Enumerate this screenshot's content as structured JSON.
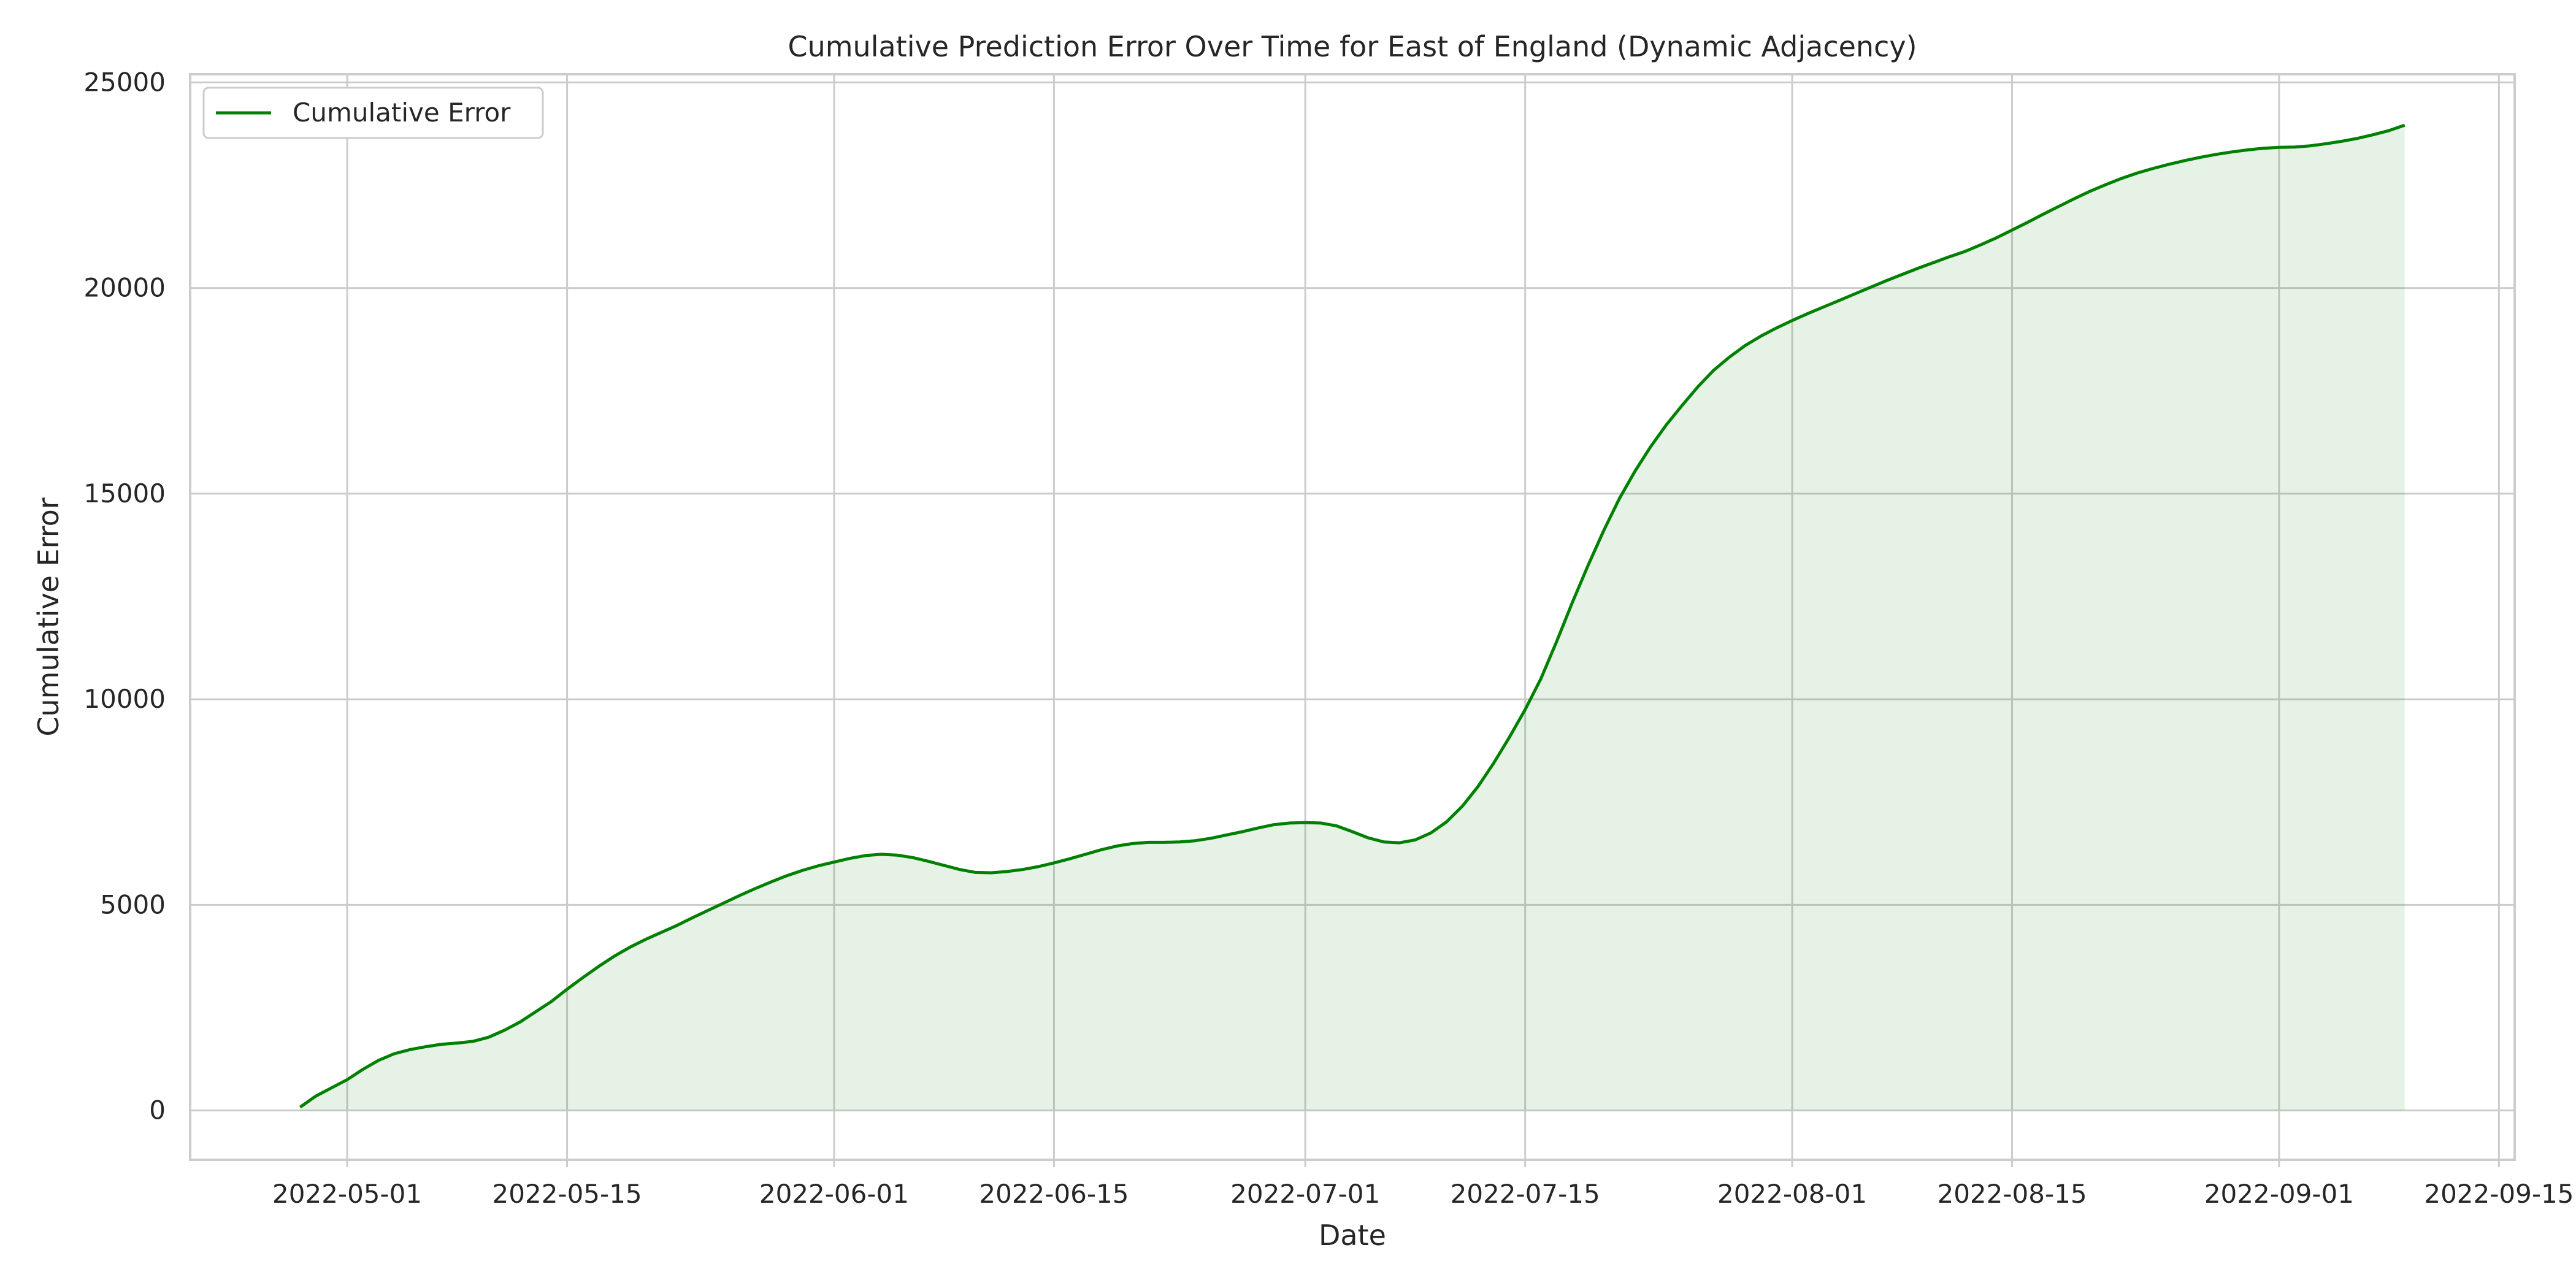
{
  "chart_data": {
    "type": "area",
    "title": "Cumulative Prediction Error Over Time for East of England (Dynamic Adjacency)",
    "xlabel": "Date",
    "ylabel": "Cumulative Error",
    "xlim": [
      "2022-04-21",
      "2022-09-16"
    ],
    "ylim": [
      -1200,
      25200
    ],
    "x_ticks": [
      "2022-05-01",
      "2022-05-15",
      "2022-06-01",
      "2022-06-15",
      "2022-07-01",
      "2022-07-15",
      "2022-08-01",
      "2022-08-15",
      "2022-09-01",
      "2022-09-15"
    ],
    "y_ticks": [
      0,
      5000,
      10000,
      15000,
      20000,
      25000
    ],
    "grid": true,
    "legend": {
      "position": "top-left"
    },
    "series": [
      {
        "name": "Cumulative Error",
        "color": "#008000",
        "fill_color": "#008000",
        "fill_opacity": 0.1,
        "points": [
          [
            "2022-04-28",
            80
          ],
          [
            "2022-04-29",
            350
          ],
          [
            "2022-04-30",
            550
          ],
          [
            "2022-05-01",
            750
          ],
          [
            "2022-05-02",
            1000
          ],
          [
            "2022-05-03",
            1220
          ],
          [
            "2022-05-04",
            1380
          ],
          [
            "2022-05-05",
            1480
          ],
          [
            "2022-05-06",
            1550
          ],
          [
            "2022-05-07",
            1610
          ],
          [
            "2022-05-08",
            1640
          ],
          [
            "2022-05-09",
            1680
          ],
          [
            "2022-05-10",
            1780
          ],
          [
            "2022-05-11",
            1950
          ],
          [
            "2022-05-12",
            2150
          ],
          [
            "2022-05-13",
            2400
          ],
          [
            "2022-05-14",
            2650
          ],
          [
            "2022-05-15",
            2950
          ],
          [
            "2022-05-16",
            3230
          ],
          [
            "2022-05-17",
            3500
          ],
          [
            "2022-05-18",
            3750
          ],
          [
            "2022-05-19",
            3970
          ],
          [
            "2022-05-20",
            4160
          ],
          [
            "2022-05-21",
            4330
          ],
          [
            "2022-05-22",
            4500
          ],
          [
            "2022-05-23",
            4690
          ],
          [
            "2022-05-24",
            4870
          ],
          [
            "2022-05-25",
            5050
          ],
          [
            "2022-05-26",
            5230
          ],
          [
            "2022-05-27",
            5400
          ],
          [
            "2022-05-28",
            5560
          ],
          [
            "2022-05-29",
            5710
          ],
          [
            "2022-05-30",
            5840
          ],
          [
            "2022-05-31",
            5950
          ],
          [
            "2022-06-01",
            6040
          ],
          [
            "2022-06-02",
            6130
          ],
          [
            "2022-06-03",
            6200
          ],
          [
            "2022-06-04",
            6230
          ],
          [
            "2022-06-05",
            6210
          ],
          [
            "2022-06-06",
            6150
          ],
          [
            "2022-06-07",
            6060
          ],
          [
            "2022-06-08",
            5960
          ],
          [
            "2022-06-09",
            5860
          ],
          [
            "2022-06-10",
            5790
          ],
          [
            "2022-06-11",
            5780
          ],
          [
            "2022-06-12",
            5810
          ],
          [
            "2022-06-13",
            5860
          ],
          [
            "2022-06-14",
            5930
          ],
          [
            "2022-06-15",
            6020
          ],
          [
            "2022-06-16",
            6120
          ],
          [
            "2022-06-17",
            6230
          ],
          [
            "2022-06-18",
            6340
          ],
          [
            "2022-06-19",
            6430
          ],
          [
            "2022-06-20",
            6490
          ],
          [
            "2022-06-21",
            6520
          ],
          [
            "2022-06-22",
            6520
          ],
          [
            "2022-06-23",
            6530
          ],
          [
            "2022-06-24",
            6560
          ],
          [
            "2022-06-25",
            6620
          ],
          [
            "2022-06-26",
            6700
          ],
          [
            "2022-06-27",
            6780
          ],
          [
            "2022-06-28",
            6870
          ],
          [
            "2022-06-29",
            6950
          ],
          [
            "2022-06-30",
            6990
          ],
          [
            "2022-07-01",
            7000
          ],
          [
            "2022-07-02",
            6990
          ],
          [
            "2022-07-03",
            6920
          ],
          [
            "2022-07-04",
            6780
          ],
          [
            "2022-07-05",
            6630
          ],
          [
            "2022-07-06",
            6530
          ],
          [
            "2022-07-07",
            6510
          ],
          [
            "2022-07-08",
            6580
          ],
          [
            "2022-07-09",
            6750
          ],
          [
            "2022-07-10",
            7020
          ],
          [
            "2022-07-11",
            7400
          ],
          [
            "2022-07-12",
            7880
          ],
          [
            "2022-07-13",
            8450
          ],
          [
            "2022-07-14",
            9080
          ],
          [
            "2022-07-15",
            9750
          ],
          [
            "2022-07-16",
            10500
          ],
          [
            "2022-07-17",
            11400
          ],
          [
            "2022-07-18",
            12350
          ],
          [
            "2022-07-19",
            13250
          ],
          [
            "2022-07-20",
            14100
          ],
          [
            "2022-07-21",
            14880
          ],
          [
            "2022-07-22",
            15550
          ],
          [
            "2022-07-23",
            16150
          ],
          [
            "2022-07-24",
            16680
          ],
          [
            "2022-07-25",
            17150
          ],
          [
            "2022-07-26",
            17600
          ],
          [
            "2022-07-27",
            18000
          ],
          [
            "2022-07-28",
            18320
          ],
          [
            "2022-07-29",
            18600
          ],
          [
            "2022-07-30",
            18830
          ],
          [
            "2022-07-31",
            19030
          ],
          [
            "2022-08-01",
            19210
          ],
          [
            "2022-08-02",
            19380
          ],
          [
            "2022-08-03",
            19540
          ],
          [
            "2022-08-04",
            19700
          ],
          [
            "2022-08-05",
            19860
          ],
          [
            "2022-08-06",
            20020
          ],
          [
            "2022-08-07",
            20180
          ],
          [
            "2022-08-08",
            20330
          ],
          [
            "2022-08-09",
            20480
          ],
          [
            "2022-08-10",
            20620
          ],
          [
            "2022-08-11",
            20760
          ],
          [
            "2022-08-12",
            20890
          ],
          [
            "2022-08-13",
            21050
          ],
          [
            "2022-08-14",
            21220
          ],
          [
            "2022-08-15",
            21410
          ],
          [
            "2022-08-16",
            21600
          ],
          [
            "2022-08-17",
            21800
          ],
          [
            "2022-08-18",
            21990
          ],
          [
            "2022-08-19",
            22180
          ],
          [
            "2022-08-20",
            22360
          ],
          [
            "2022-08-21",
            22520
          ],
          [
            "2022-08-22",
            22670
          ],
          [
            "2022-08-23",
            22800
          ],
          [
            "2022-08-24",
            22910
          ],
          [
            "2022-08-25",
            23010
          ],
          [
            "2022-08-26",
            23100
          ],
          [
            "2022-08-27",
            23180
          ],
          [
            "2022-08-28",
            23250
          ],
          [
            "2022-08-29",
            23310
          ],
          [
            "2022-08-30",
            23360
          ],
          [
            "2022-08-31",
            23400
          ],
          [
            "2022-09-01",
            23420
          ],
          [
            "2022-09-02",
            23430
          ],
          [
            "2022-09-03",
            23460
          ],
          [
            "2022-09-04",
            23510
          ],
          [
            "2022-09-05",
            23570
          ],
          [
            "2022-09-06",
            23640
          ],
          [
            "2022-09-07",
            23730
          ],
          [
            "2022-09-08",
            23830
          ],
          [
            "2022-09-09",
            23960
          ]
        ]
      }
    ]
  }
}
